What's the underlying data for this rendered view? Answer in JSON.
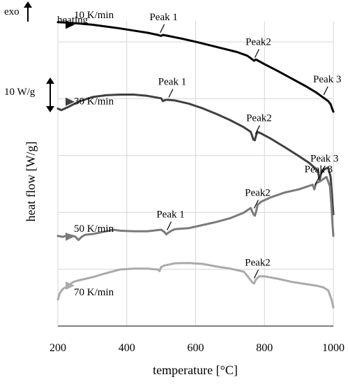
{
  "chart_data": {
    "type": "line",
    "top_left_label": "exo",
    "condition_label": "heating",
    "scale_bar_label": "10 W/g",
    "xlabel": "temperature [°C]",
    "ylabel": "heat flow [W/g]",
    "xlim": [
      200,
      1000
    ],
    "xticks": [
      "200",
      "400",
      "600",
      "800",
      "1000"
    ],
    "grid": true,
    "series": [
      {
        "name": "10 K/min",
        "color": "#000000",
        "x": [
          200,
          220,
          260,
          300,
          340,
          380,
          420,
          460,
          490,
          500,
          505,
          520,
          560,
          600,
          640,
          680,
          720,
          750,
          765,
          770,
          775,
          780,
          800,
          840,
          880,
          920,
          950,
          965,
          975,
          985,
          992,
          997,
          1000
        ],
        "y": [
          -2.2,
          -2.3,
          -2.6,
          -3.0,
          -3.6,
          -4.2,
          -4.9,
          -5.6,
          -6.3,
          -6.6,
          -6.3,
          -6.6,
          -7.5,
          -8.5,
          -9.6,
          -10.7,
          -11.8,
          -13.0,
          -14.2,
          -14.6,
          -14.2,
          -14.5,
          -15.7,
          -18.0,
          -20.4,
          -22.8,
          -24.8,
          -26.0,
          -26.8,
          -27.6,
          -28.6,
          -30.2,
          -31.0
        ],
        "annotations": [
          {
            "text": "Peak 1",
            "x": 495,
            "y": -6.5
          },
          {
            "text": "Peak2",
            "x": 770,
            "y": -14.5
          },
          {
            "text": "Peak 3",
            "x": 970,
            "y": -26.5
          }
        ]
      },
      {
        "name": "30 K/min",
        "color": "#404040",
        "x": [
          200,
          210,
          230,
          260,
          300,
          340,
          380,
          420,
          460,
          500,
          505,
          510,
          515,
          520,
          540,
          580,
          620,
          660,
          700,
          740,
          760,
          768,
          772,
          776,
          780,
          790,
          820,
          860,
          900,
          930,
          955,
          960,
          963,
          966,
          975,
          985,
          992,
          996,
          1000
        ],
        "y": [
          -30.0,
          -30.5,
          -29.5,
          -27.8,
          -26.3,
          -25.7,
          -25.5,
          -25.5,
          -25.9,
          -26.7,
          -27.6,
          -27.3,
          -27.2,
          -27.2,
          -27.4,
          -28.4,
          -29.9,
          -31.7,
          -33.7,
          -36.0,
          -37.5,
          -40.0,
          -40.2,
          -38.5,
          -37.5,
          -38.0,
          -39.8,
          -42.5,
          -45.3,
          -47.5,
          -50.0,
          -53.0,
          -51.5,
          -50.5,
          -49.5,
          -49.0,
          -52.0,
          -58.0,
          -64.0
        ],
        "annotations": [
          {
            "text": "Peak 1",
            "x": 520,
            "y": -27.3
          },
          {
            "text": "Peak2",
            "x": 772,
            "y": -39.0
          },
          {
            "text": "Peak 3",
            "x": 962,
            "y": -52.0
          }
        ]
      },
      {
        "name": "50 K/min",
        "color": "#7a7a7a",
        "x": [
          200,
          215,
          230,
          250,
          260,
          270,
          280,
          300,
          340,
          360,
          380,
          420,
          460,
          500,
          510,
          515,
          520,
          530,
          540,
          580,
          620,
          660,
          700,
          740,
          760,
          768,
          772,
          776,
          780,
          790,
          820,
          860,
          900,
          940,
          945,
          950,
          960,
          980,
          990,
          995,
          998,
          1000
        ],
        "y": [
          -71.0,
          -71.3,
          -70.6,
          -71.2,
          -72.3,
          -71.2,
          -70.6,
          -70.4,
          -69.5,
          -69.0,
          -69.3,
          -69.5,
          -69.5,
          -69.0,
          -69.8,
          -70.5,
          -70.0,
          -69.3,
          -68.8,
          -68.5,
          -67.5,
          -66.5,
          -65.3,
          -63.5,
          -62.0,
          -64.0,
          -64.5,
          -63.0,
          -61.0,
          -60.0,
          -58.5,
          -57.0,
          -56.0,
          -54.5,
          -56.0,
          -54.0,
          -53.5,
          -52.0,
          -55.0,
          -62.0,
          -68.0,
          -71.0
        ],
        "annotations": [
          {
            "text": "Peak 1",
            "x": 515,
            "y": -70.0
          },
          {
            "text": "Peak2",
            "x": 768,
            "y": -63.0
          },
          {
            "text": "Peak 3",
            "x": 945,
            "y": -55.5
          }
        ]
      },
      {
        "name": "70 K/min",
        "color": "#aaaaaa",
        "x": [
          200,
          205,
          215,
          230,
          245,
          260,
          300,
          340,
          380,
          420,
          460,
          490,
          495,
          500,
          510,
          540,
          580,
          620,
          660,
          700,
          740,
          755,
          765,
          770,
          775,
          785,
          800,
          840,
          880,
          920,
          950,
          970,
          985,
          995,
          1000
        ],
        "y": [
          -91.5,
          -89.5,
          -88.0,
          -87.0,
          -85.8,
          -85.3,
          -84.3,
          -83.0,
          -81.8,
          -81.5,
          -81.5,
          -81.8,
          -82.3,
          -81.0,
          -80.5,
          -79.8,
          -79.7,
          -80.0,
          -80.8,
          -81.5,
          -82.5,
          -84.5,
          -86.0,
          -86.3,
          -85.0,
          -84.0,
          -84.0,
          -84.8,
          -85.8,
          -86.5,
          -87.0,
          -87.5,
          -88.5,
          -91.5,
          -94.0
        ],
        "annotations": [
          {
            "text": "Peak2",
            "x": 768,
            "y": -85.5
          }
        ]
      }
    ]
  }
}
